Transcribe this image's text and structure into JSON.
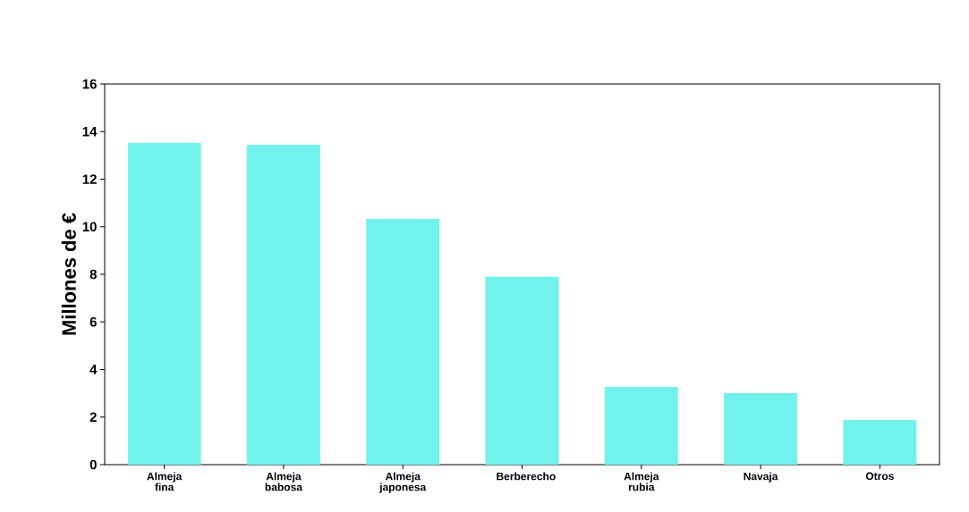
{
  "chart_data": {
    "type": "bar",
    "ylabel": "Millones de €",
    "categories": [
      "Almeja fina",
      "Almeja babosa",
      "Almeja japonesa",
      "Berberecho",
      "Almeja rubia",
      "Navaja",
      "Otros"
    ],
    "values": [
      13.53,
      13.45,
      10.33,
      7.9,
      3.27,
      3.0,
      1.88
    ],
    "color": "#72f2ec",
    "ylim": [
      0,
      16
    ],
    "yticks": [
      0,
      2,
      4,
      6,
      8,
      10,
      12,
      14,
      16
    ],
    "grid": false
  }
}
